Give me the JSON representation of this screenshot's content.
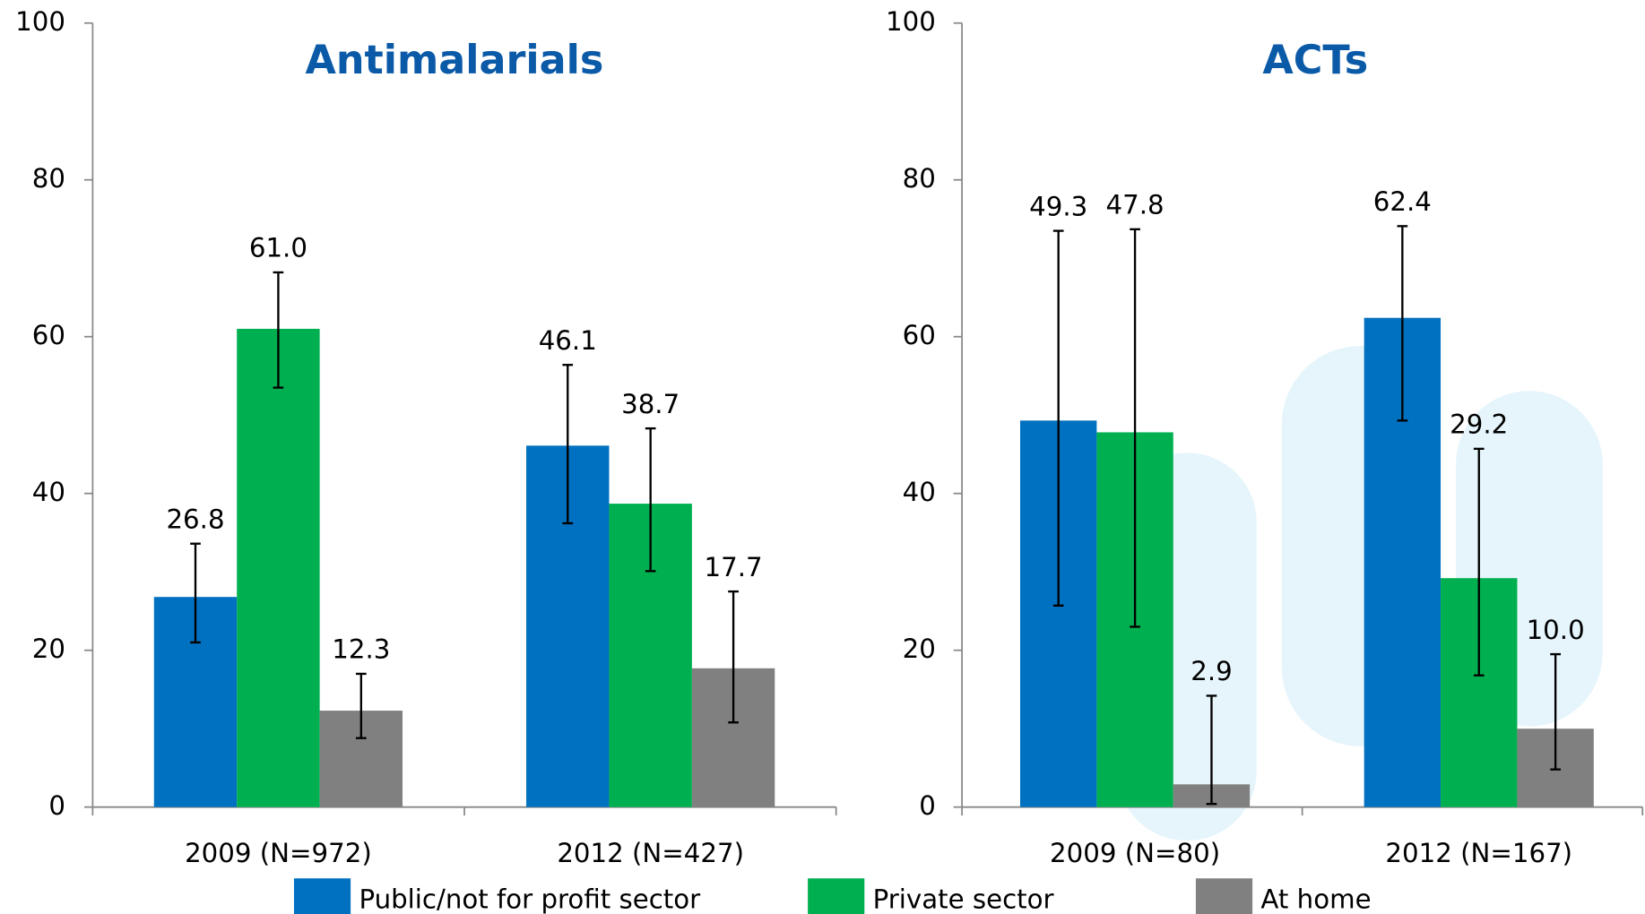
{
  "chart_data": [
    {
      "type": "bar",
      "title": "Antimalarials",
      "categories": [
        "2009 (N=972)",
        "2012 (N=427)"
      ],
      "ylim": [
        0,
        100
      ],
      "yticks": [
        0,
        20,
        40,
        60,
        80,
        100
      ],
      "series": [
        {
          "name": "Public/not for profit sector",
          "color": "#0070c0",
          "values": [
            26.8,
            46.1
          ],
          "ci_low": [
            21.0,
            36.2
          ],
          "ci_high": [
            33.6,
            56.4
          ]
        },
        {
          "name": "Private sector",
          "color": "#00b050",
          "values": [
            61.0,
            38.7
          ],
          "ci_low": [
            53.5,
            30.1
          ],
          "ci_high": [
            68.2,
            48.3
          ]
        },
        {
          "name": "At home",
          "color": "#808080",
          "values": [
            12.3,
            17.7
          ],
          "ci_low": [
            8.8,
            10.8
          ],
          "ci_high": [
            17.0,
            27.5
          ]
        }
      ]
    },
    {
      "type": "bar",
      "title": "ACTs",
      "categories": [
        "2009 (N=80)",
        "2012 (N=167)"
      ],
      "ylim": [
        0,
        100
      ],
      "yticks": [
        0,
        20,
        40,
        60,
        80,
        100
      ],
      "series": [
        {
          "color": "#0070c0",
          "values": [
            49.3,
            62.4
          ],
          "ci_low": [
            25.7,
            49.3
          ],
          "ci_high": [
            73.5,
            74.1
          ]
        },
        {
          "color": "#00b050",
          "values": [
            47.8,
            29.2
          ],
          "ci_low": [
            23.0,
            16.8
          ],
          "ci_high": [
            73.7,
            45.7
          ]
        },
        {
          "color": "#808080",
          "values": [
            2.9,
            10.0
          ],
          "ci_low": [
            0.4,
            4.8
          ],
          "ci_high": [
            14.2,
            19.5
          ]
        }
      ]
    }
  ]
}
